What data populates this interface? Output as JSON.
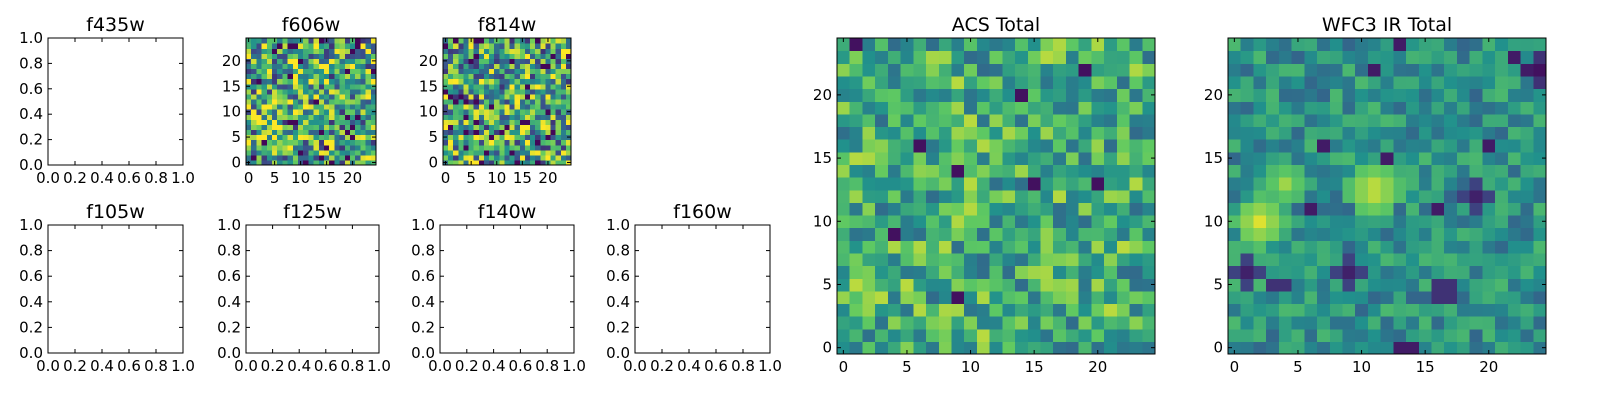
{
  "colormap": [
    "#440154",
    "#3b528b",
    "#21918c",
    "#5ec962",
    "#fde725"
  ],
  "chart_data": [
    {
      "type": "empty",
      "title": "f435w",
      "xlim": [
        0,
        1
      ],
      "ylim": [
        0,
        1
      ],
      "xticks": [
        "0.0",
        "0.2",
        "0.4",
        "0.6",
        "0.8",
        "1.0"
      ],
      "yticks": [
        "0.0",
        "0.2",
        "0.4",
        "0.6",
        "0.8",
        "1.0"
      ]
    },
    {
      "type": "heatmap",
      "title": "f606w",
      "grid_size": 25,
      "value_range": [
        0,
        1
      ],
      "seed": 11,
      "mode": "noise",
      "xticks": [
        "0",
        "5",
        "10",
        "15",
        "20"
      ],
      "yticks": [
        "0",
        "5",
        "10",
        "15",
        "20"
      ]
    },
    {
      "type": "heatmap",
      "title": "f814w",
      "grid_size": 25,
      "value_range": [
        0,
        1
      ],
      "seed": 29,
      "mode": "noise",
      "xticks": [
        "0",
        "5",
        "10",
        "15",
        "20"
      ],
      "yticks": [
        "0",
        "5",
        "10",
        "15",
        "20"
      ]
    },
    {
      "type": "empty",
      "title": "f105w",
      "xlim": [
        0,
        1
      ],
      "ylim": [
        0,
        1
      ],
      "xticks": [
        "0.0",
        "0.2",
        "0.4",
        "0.6",
        "0.8",
        "1.0"
      ],
      "yticks": [
        "0.0",
        "0.2",
        "0.4",
        "0.6",
        "0.8",
        "1.0"
      ]
    },
    {
      "type": "empty",
      "title": "f125w",
      "xlim": [
        0,
        1
      ],
      "ylim": [
        0,
        1
      ],
      "xticks": [
        "0.0",
        "0.2",
        "0.4",
        "0.6",
        "0.8",
        "1.0"
      ],
      "yticks": [
        "0.0",
        "0.2",
        "0.4",
        "0.6",
        "0.8",
        "1.0"
      ]
    },
    {
      "type": "empty",
      "title": "f140w",
      "xlim": [
        0,
        1
      ],
      "ylim": [
        0,
        1
      ],
      "xticks": [
        "0.0",
        "0.2",
        "0.4",
        "0.6",
        "0.8",
        "1.0"
      ],
      "yticks": [
        "0.0",
        "0.2",
        "0.4",
        "0.6",
        "0.8",
        "1.0"
      ]
    },
    {
      "type": "empty",
      "title": "f160w",
      "xlim": [
        0,
        1
      ],
      "ylim": [
        0,
        1
      ],
      "xticks": [
        "0.0",
        "0.2",
        "0.4",
        "0.6",
        "0.8",
        "1.0"
      ],
      "yticks": [
        "0.0",
        "0.2",
        "0.4",
        "0.6",
        "0.8",
        "1.0"
      ]
    },
    {
      "type": "heatmap",
      "title": "ACS Total",
      "grid_size": 25,
      "value_range": [
        0,
        1
      ],
      "seed": 53,
      "mode": "acs",
      "xticks": [
        "0",
        "5",
        "10",
        "15",
        "20"
      ],
      "yticks": [
        "0",
        "5",
        "10",
        "15",
        "20"
      ]
    },
    {
      "type": "heatmap",
      "title": "WFC3 IR Total",
      "grid_size": 25,
      "value_range": [
        0,
        1
      ],
      "seed": 97,
      "mode": "ir",
      "xticks": [
        "0",
        "5",
        "10",
        "15",
        "20"
      ],
      "yticks": [
        "0",
        "5",
        "10",
        "15",
        "20"
      ]
    }
  ]
}
